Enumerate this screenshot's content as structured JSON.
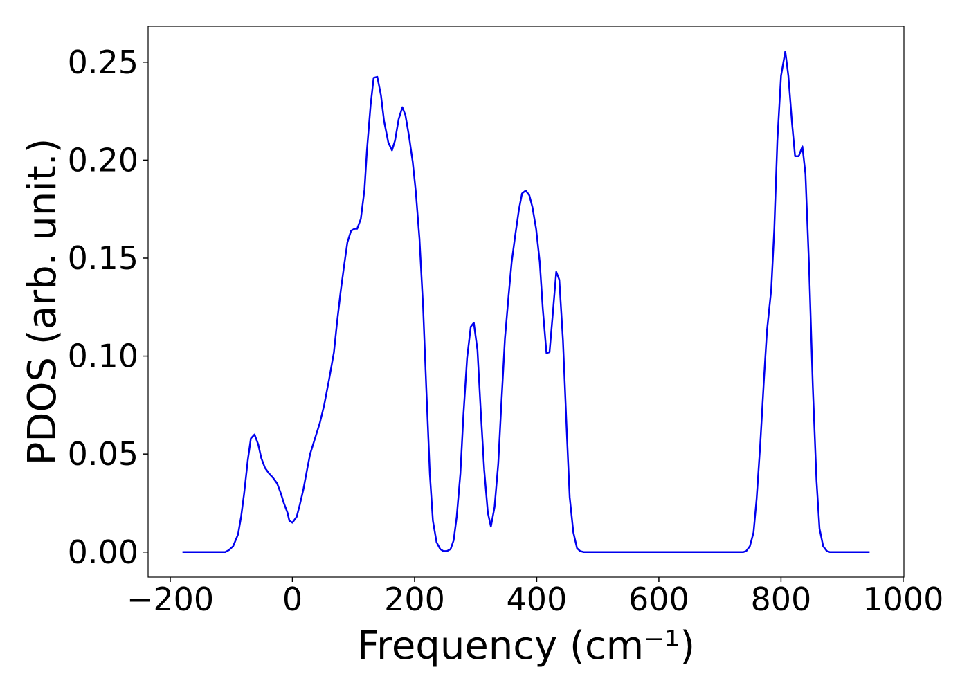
{
  "chart_data": {
    "type": "line",
    "xlabel": "Frequency (cm⁻¹)",
    "ylabel": "PDOS (arb. unit.)",
    "x": [
      -180,
      -150,
      -120,
      -110,
      -104,
      -97,
      -89,
      -84,
      -79,
      -73,
      -68,
      -62,
      -56,
      -51,
      -45,
      -38,
      -32,
      -25,
      -19,
      -14,
      -8,
      -5,
      0,
      7,
      12,
      18,
      24,
      29,
      37,
      45,
      52,
      60,
      68,
      73,
      79,
      85,
      90,
      96,
      102,
      106,
      112,
      118,
      122,
      128,
      133,
      139,
      145,
      150,
      157,
      163,
      168,
      174,
      180,
      185,
      191,
      197,
      202,
      208,
      214,
      219,
      225,
      230,
      236,
      242,
      247,
      253,
      259,
      264,
      269,
      275,
      280,
      286,
      292,
      297,
      303,
      308,
      314,
      320,
      325,
      331,
      337,
      342,
      348,
      354,
      359,
      365,
      371,
      376,
      382,
      388,
      393,
      399,
      405,
      410,
      416,
      421,
      427,
      432,
      437,
      443,
      449,
      454,
      460,
      466,
      471,
      477,
      500,
      600,
      700,
      738,
      743,
      749,
      755,
      760,
      766,
      772,
      777,
      784,
      789,
      794,
      800,
      807,
      812,
      818,
      823,
      829,
      835,
      840,
      846,
      852,
      858,
      863,
      869,
      875,
      880,
      900,
      945
    ],
    "series": [
      {
        "name": "PDOS",
        "color": "#0000ee",
        "values": [
          0,
          0,
          0,
          0,
          0.001,
          0.003,
          0.009,
          0.018,
          0.03,
          0.047,
          0.058,
          0.06,
          0.055,
          0.048,
          0.043,
          0.04,
          0.038,
          0.035,
          0.03,
          0.025,
          0.02,
          0.016,
          0.015,
          0.018,
          0.024,
          0.032,
          0.042,
          0.05,
          0.058,
          0.066,
          0.075,
          0.088,
          0.102,
          0.117,
          0.133,
          0.147,
          0.158,
          0.164,
          0.165,
          0.165,
          0.17,
          0.185,
          0.205,
          0.228,
          0.242,
          0.2425,
          0.233,
          0.22,
          0.209,
          0.205,
          0.21,
          0.221,
          0.227,
          0.223,
          0.212,
          0.199,
          0.184,
          0.16,
          0.125,
          0.085,
          0.04,
          0.016,
          0.005,
          0.0015,
          0.0005,
          0.0005,
          0.0015,
          0.006,
          0.018,
          0.04,
          0.07,
          0.099,
          0.115,
          0.117,
          0.103,
          0.074,
          0.042,
          0.02,
          0.013,
          0.023,
          0.045,
          0.075,
          0.109,
          0.131,
          0.148,
          0.162,
          0.175,
          0.183,
          0.1845,
          0.182,
          0.176,
          0.165,
          0.148,
          0.124,
          0.1015,
          0.102,
          0.124,
          0.143,
          0.139,
          0.108,
          0.063,
          0.028,
          0.01,
          0.002,
          0.0005,
          0,
          0,
          0,
          0,
          0,
          0.0005,
          0.003,
          0.01,
          0.027,
          0.055,
          0.088,
          0.113,
          0.134,
          0.165,
          0.21,
          0.243,
          0.2555,
          0.243,
          0.219,
          0.202,
          0.202,
          0.207,
          0.193,
          0.145,
          0.085,
          0.037,
          0.012,
          0.003,
          0.0005,
          0,
          0,
          0
        ]
      }
    ],
    "xlim": [
      -236.25,
      1001.25
    ],
    "ylim": [
      -0.0128,
      0.2683
    ],
    "xticks": [
      {
        "value": -200,
        "label": "−200"
      },
      0,
      200,
      400,
      600,
      800,
      1000
    ],
    "yticks": [
      {
        "value": 0,
        "label": "0.00"
      },
      {
        "value": 0.05,
        "label": "0.05"
      },
      {
        "value": 0.1,
        "label": "0.10"
      },
      {
        "value": 0.15,
        "label": "0.15"
      },
      {
        "value": 0.2,
        "label": "0.20"
      },
      {
        "value": 0.25,
        "label": "0.25"
      }
    ],
    "grid": false
  }
}
